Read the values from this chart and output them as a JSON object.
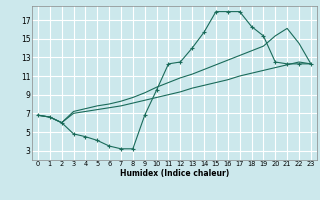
{
  "xlabel": "Humidex (Indice chaleur)",
  "bg_color": "#cce8ec",
  "grid_color": "#ffffff",
  "line_color": "#1a6b5a",
  "xlim": [
    -0.5,
    23.5
  ],
  "ylim": [
    2.0,
    18.5
  ],
  "xticks": [
    0,
    1,
    2,
    3,
    4,
    5,
    6,
    7,
    8,
    9,
    10,
    11,
    12,
    13,
    14,
    15,
    16,
    17,
    18,
    19,
    20,
    21,
    22,
    23
  ],
  "yticks": [
    3,
    5,
    7,
    9,
    11,
    13,
    15,
    17
  ],
  "curve1_x": [
    0,
    1,
    2,
    3,
    4,
    5,
    6,
    7,
    8,
    9,
    10,
    11,
    12,
    13,
    14,
    15,
    16,
    17,
    18,
    19,
    20,
    21,
    22,
    23
  ],
  "curve1_y": [
    6.8,
    6.6,
    6.0,
    4.8,
    4.5,
    4.1,
    3.5,
    3.2,
    3.2,
    6.8,
    9.5,
    12.3,
    12.5,
    14.0,
    15.7,
    17.9,
    17.9,
    17.9,
    16.3,
    15.3,
    12.5,
    12.3,
    12.3,
    12.3
  ],
  "curve2_x": [
    0,
    1,
    2,
    3,
    4,
    5,
    6,
    7,
    8,
    9,
    10,
    11,
    12,
    13,
    14,
    15,
    16,
    17,
    18,
    19,
    20,
    21,
    22,
    23
  ],
  "curve2_y": [
    6.8,
    6.6,
    6.0,
    7.0,
    7.2,
    7.4,
    7.6,
    7.8,
    8.1,
    8.4,
    8.7,
    9.0,
    9.3,
    9.7,
    10.0,
    10.3,
    10.6,
    11.0,
    11.3,
    11.6,
    11.9,
    12.2,
    12.5,
    12.3
  ],
  "curve3_x": [
    0,
    1,
    2,
    3,
    4,
    5,
    6,
    7,
    8,
    9,
    10,
    11,
    12,
    13,
    14,
    15,
    16,
    17,
    18,
    19,
    20,
    21,
    22,
    23
  ],
  "curve3_y": [
    6.8,
    6.6,
    6.0,
    7.2,
    7.5,
    7.8,
    8.0,
    8.3,
    8.7,
    9.2,
    9.8,
    10.3,
    10.8,
    11.2,
    11.7,
    12.2,
    12.7,
    13.2,
    13.7,
    14.2,
    15.3,
    16.1,
    14.5,
    12.3
  ]
}
